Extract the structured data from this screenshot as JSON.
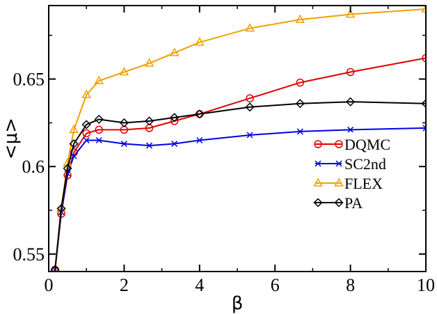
{
  "chart_data": {
    "type": "line",
    "title": "",
    "xlabel": "β",
    "ylabel": "<μ>",
    "xlim": [
      0,
      10
    ],
    "ylim": [
      0.54,
      0.692
    ],
    "xticks": [
      0,
      2,
      4,
      6,
      8,
      10
    ],
    "xtick_labels": [
      "0",
      "2",
      "4",
      "6",
      "8",
      "10"
    ],
    "yticks": [
      0.55,
      0.6,
      0.65
    ],
    "ytick_labels": [
      "0.55",
      "0.6",
      "0.65"
    ],
    "grid": false,
    "legend_position": "center-right",
    "series": [
      {
        "name": "DQMC",
        "color": "#e00000",
        "marker": "circle",
        "x": [
          0.167,
          0.333,
          0.5,
          0.667,
          1.0,
          1.333,
          2.0,
          2.667,
          3.333,
          4.0,
          5.333,
          6.667,
          8.0,
          10.0
        ],
        "y": [
          0.541,
          0.573,
          0.595,
          0.608,
          0.619,
          0.621,
          0.621,
          0.622,
          0.626,
          0.63,
          0.639,
          0.648,
          0.654,
          0.662
        ]
      },
      {
        "name": "SC2nd",
        "color": "#0000e0",
        "marker": "cross",
        "x": [
          0.167,
          0.333,
          0.5,
          0.667,
          1.0,
          1.333,
          2.0,
          2.667,
          3.333,
          4.0,
          5.333,
          6.667,
          8.0,
          10.0
        ],
        "y": [
          0.541,
          0.574,
          0.596,
          0.606,
          0.615,
          0.615,
          0.613,
          0.612,
          0.613,
          0.615,
          0.618,
          0.62,
          0.621,
          0.622
        ]
      },
      {
        "name": "FLEX",
        "color": "#f0a000",
        "marker": "triangle",
        "x": [
          0.167,
          0.333,
          0.5,
          0.667,
          1.0,
          1.333,
          2.0,
          2.667,
          3.333,
          4.0,
          5.333,
          6.667,
          8.0,
          10.0
        ],
        "y": [
          0.541,
          0.576,
          0.602,
          0.621,
          0.641,
          0.649,
          0.654,
          0.659,
          0.665,
          0.671,
          0.679,
          0.684,
          0.687,
          0.69
        ]
      },
      {
        "name": "PA",
        "color": "#000000",
        "marker": "diamond",
        "x": [
          0.167,
          0.333,
          0.5,
          0.667,
          1.0,
          1.333,
          2.0,
          2.667,
          3.333,
          4.0,
          5.333,
          6.667,
          8.0,
          10.0
        ],
        "y": [
          0.541,
          0.576,
          0.599,
          0.613,
          0.624,
          0.627,
          0.625,
          0.626,
          0.628,
          0.63,
          0.634,
          0.636,
          0.637,
          0.636
        ]
      }
    ]
  }
}
